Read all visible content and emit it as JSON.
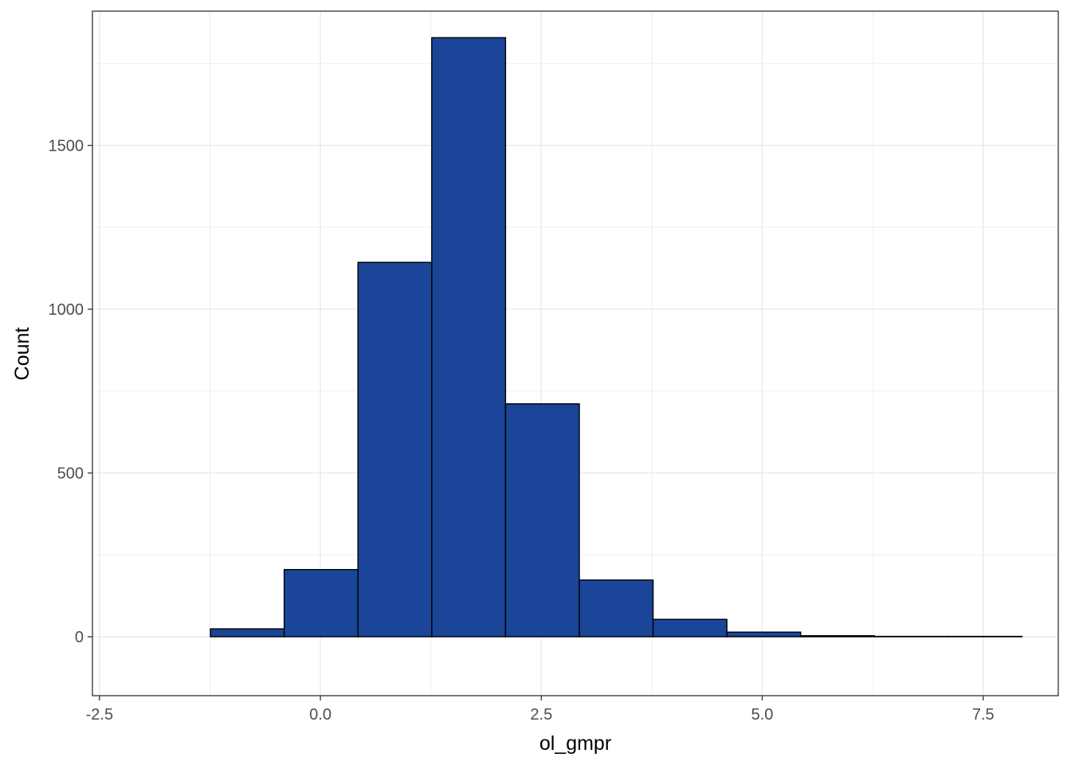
{
  "chart_data": {
    "type": "bar",
    "subtype": "histogram",
    "title": "",
    "xlabel": "ol_gmpr",
    "ylabel": "Count",
    "xlim": [
      -2.58,
      8.35
    ],
    "ylim": [
      -180,
      1910
    ],
    "x_ticks": [
      -2.5,
      0.0,
      2.5,
      5.0,
      7.5
    ],
    "x_tick_labels": [
      "-2.5",
      "0.0",
      "2.5",
      "5.0",
      "7.5"
    ],
    "y_ticks": [
      0,
      500,
      1000,
      1500
    ],
    "y_tick_labels": [
      "0",
      "500",
      "1000",
      "1500"
    ],
    "grid": true,
    "bins": [
      {
        "x0": -2.08,
        "x1": -1.245,
        "count": 0
      },
      {
        "x0": -1.245,
        "x1": -0.41,
        "count": 24
      },
      {
        "x0": -0.41,
        "x1": 0.425,
        "count": 205
      },
      {
        "x0": 0.425,
        "x1": 1.26,
        "count": 1143
      },
      {
        "x0": 1.26,
        "x1": 2.095,
        "count": 1829
      },
      {
        "x0": 2.095,
        "x1": 2.93,
        "count": 711
      },
      {
        "x0": 2.93,
        "x1": 3.765,
        "count": 173
      },
      {
        "x0": 3.765,
        "x1": 4.6,
        "count": 53
      },
      {
        "x0": 4.6,
        "x1": 5.435,
        "count": 14
      },
      {
        "x0": 5.435,
        "x1": 6.27,
        "count": 3
      },
      {
        "x0": 6.27,
        "x1": 7.105,
        "count": 1
      },
      {
        "x0": 7.105,
        "x1": 7.94,
        "count": 1
      }
    ],
    "colors": {
      "bar_fill": "#1A4599",
      "bar_outline": "#000000",
      "grid": "#EBEBEB",
      "panel_border": "#333333"
    }
  }
}
